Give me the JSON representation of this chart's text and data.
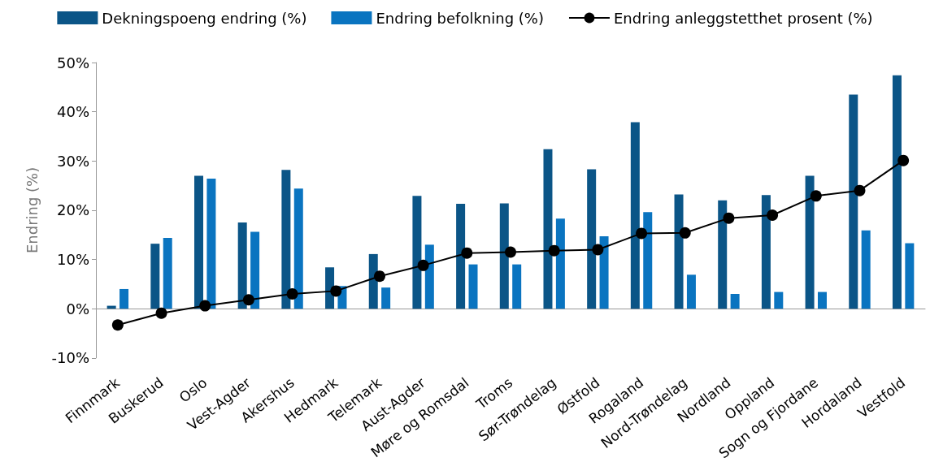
{
  "chart_data": {
    "type": "bar",
    "ylabel": "Endring (%)",
    "categories": [
      "Finnmark",
      "Buskerud",
      "Oslo",
      "Vest-Agder",
      "Akershus",
      "Hedmark",
      "Telemark",
      "Aust-Agder",
      "Møre og Romsdal",
      "Troms",
      "Sør-Trøndelag",
      "Østfold",
      "Rogaland",
      "Nord-Trøndelag",
      "Nordland",
      "Oppland",
      "Sogn og Fjordane",
      "Hordaland",
      "Vestfold"
    ],
    "series": [
      {
        "name": "Dekningspoeng endring (%)",
        "color": "#0b5587",
        "values": [
          0.6,
          13.2,
          27.0,
          17.5,
          28.2,
          8.4,
          11.1,
          22.9,
          21.3,
          21.4,
          32.4,
          28.3,
          37.9,
          23.2,
          22.0,
          23.1,
          27.0,
          43.5,
          47.4
        ]
      },
      {
        "name": "Endring befolkning (%)",
        "color": "#0a74c0",
        "values": [
          4.0,
          14.4,
          26.4,
          15.6,
          24.4,
          4.6,
          4.3,
          13.0,
          9.0,
          9.0,
          18.3,
          14.7,
          19.6,
          6.9,
          3.0,
          3.4,
          3.4,
          15.9,
          13.3
        ]
      },
      {
        "name": "Endring anleggstetthet prosent (%)",
        "type": "line",
        "color": "#000000",
        "marker": "circle",
        "values": [
          -3.3,
          -0.9,
          0.6,
          1.8,
          3.0,
          3.6,
          6.6,
          8.8,
          11.3,
          11.5,
          11.8,
          12.0,
          15.3,
          15.4,
          18.4,
          19.0,
          22.9,
          24.0,
          30.1
        ]
      }
    ],
    "ylim": [
      -10,
      50
    ],
    "yticks": [
      {
        "value": -10,
        "label": "-10%"
      },
      {
        "value": 0,
        "label": "0%"
      },
      {
        "value": 10,
        "label": "10%"
      },
      {
        "value": 20,
        "label": "20%"
      },
      {
        "value": 30,
        "label": "30%"
      },
      {
        "value": 40,
        "label": "40%"
      },
      {
        "value": 50,
        "label": "50%"
      }
    ],
    "legend": "top",
    "line_style": "solid"
  }
}
